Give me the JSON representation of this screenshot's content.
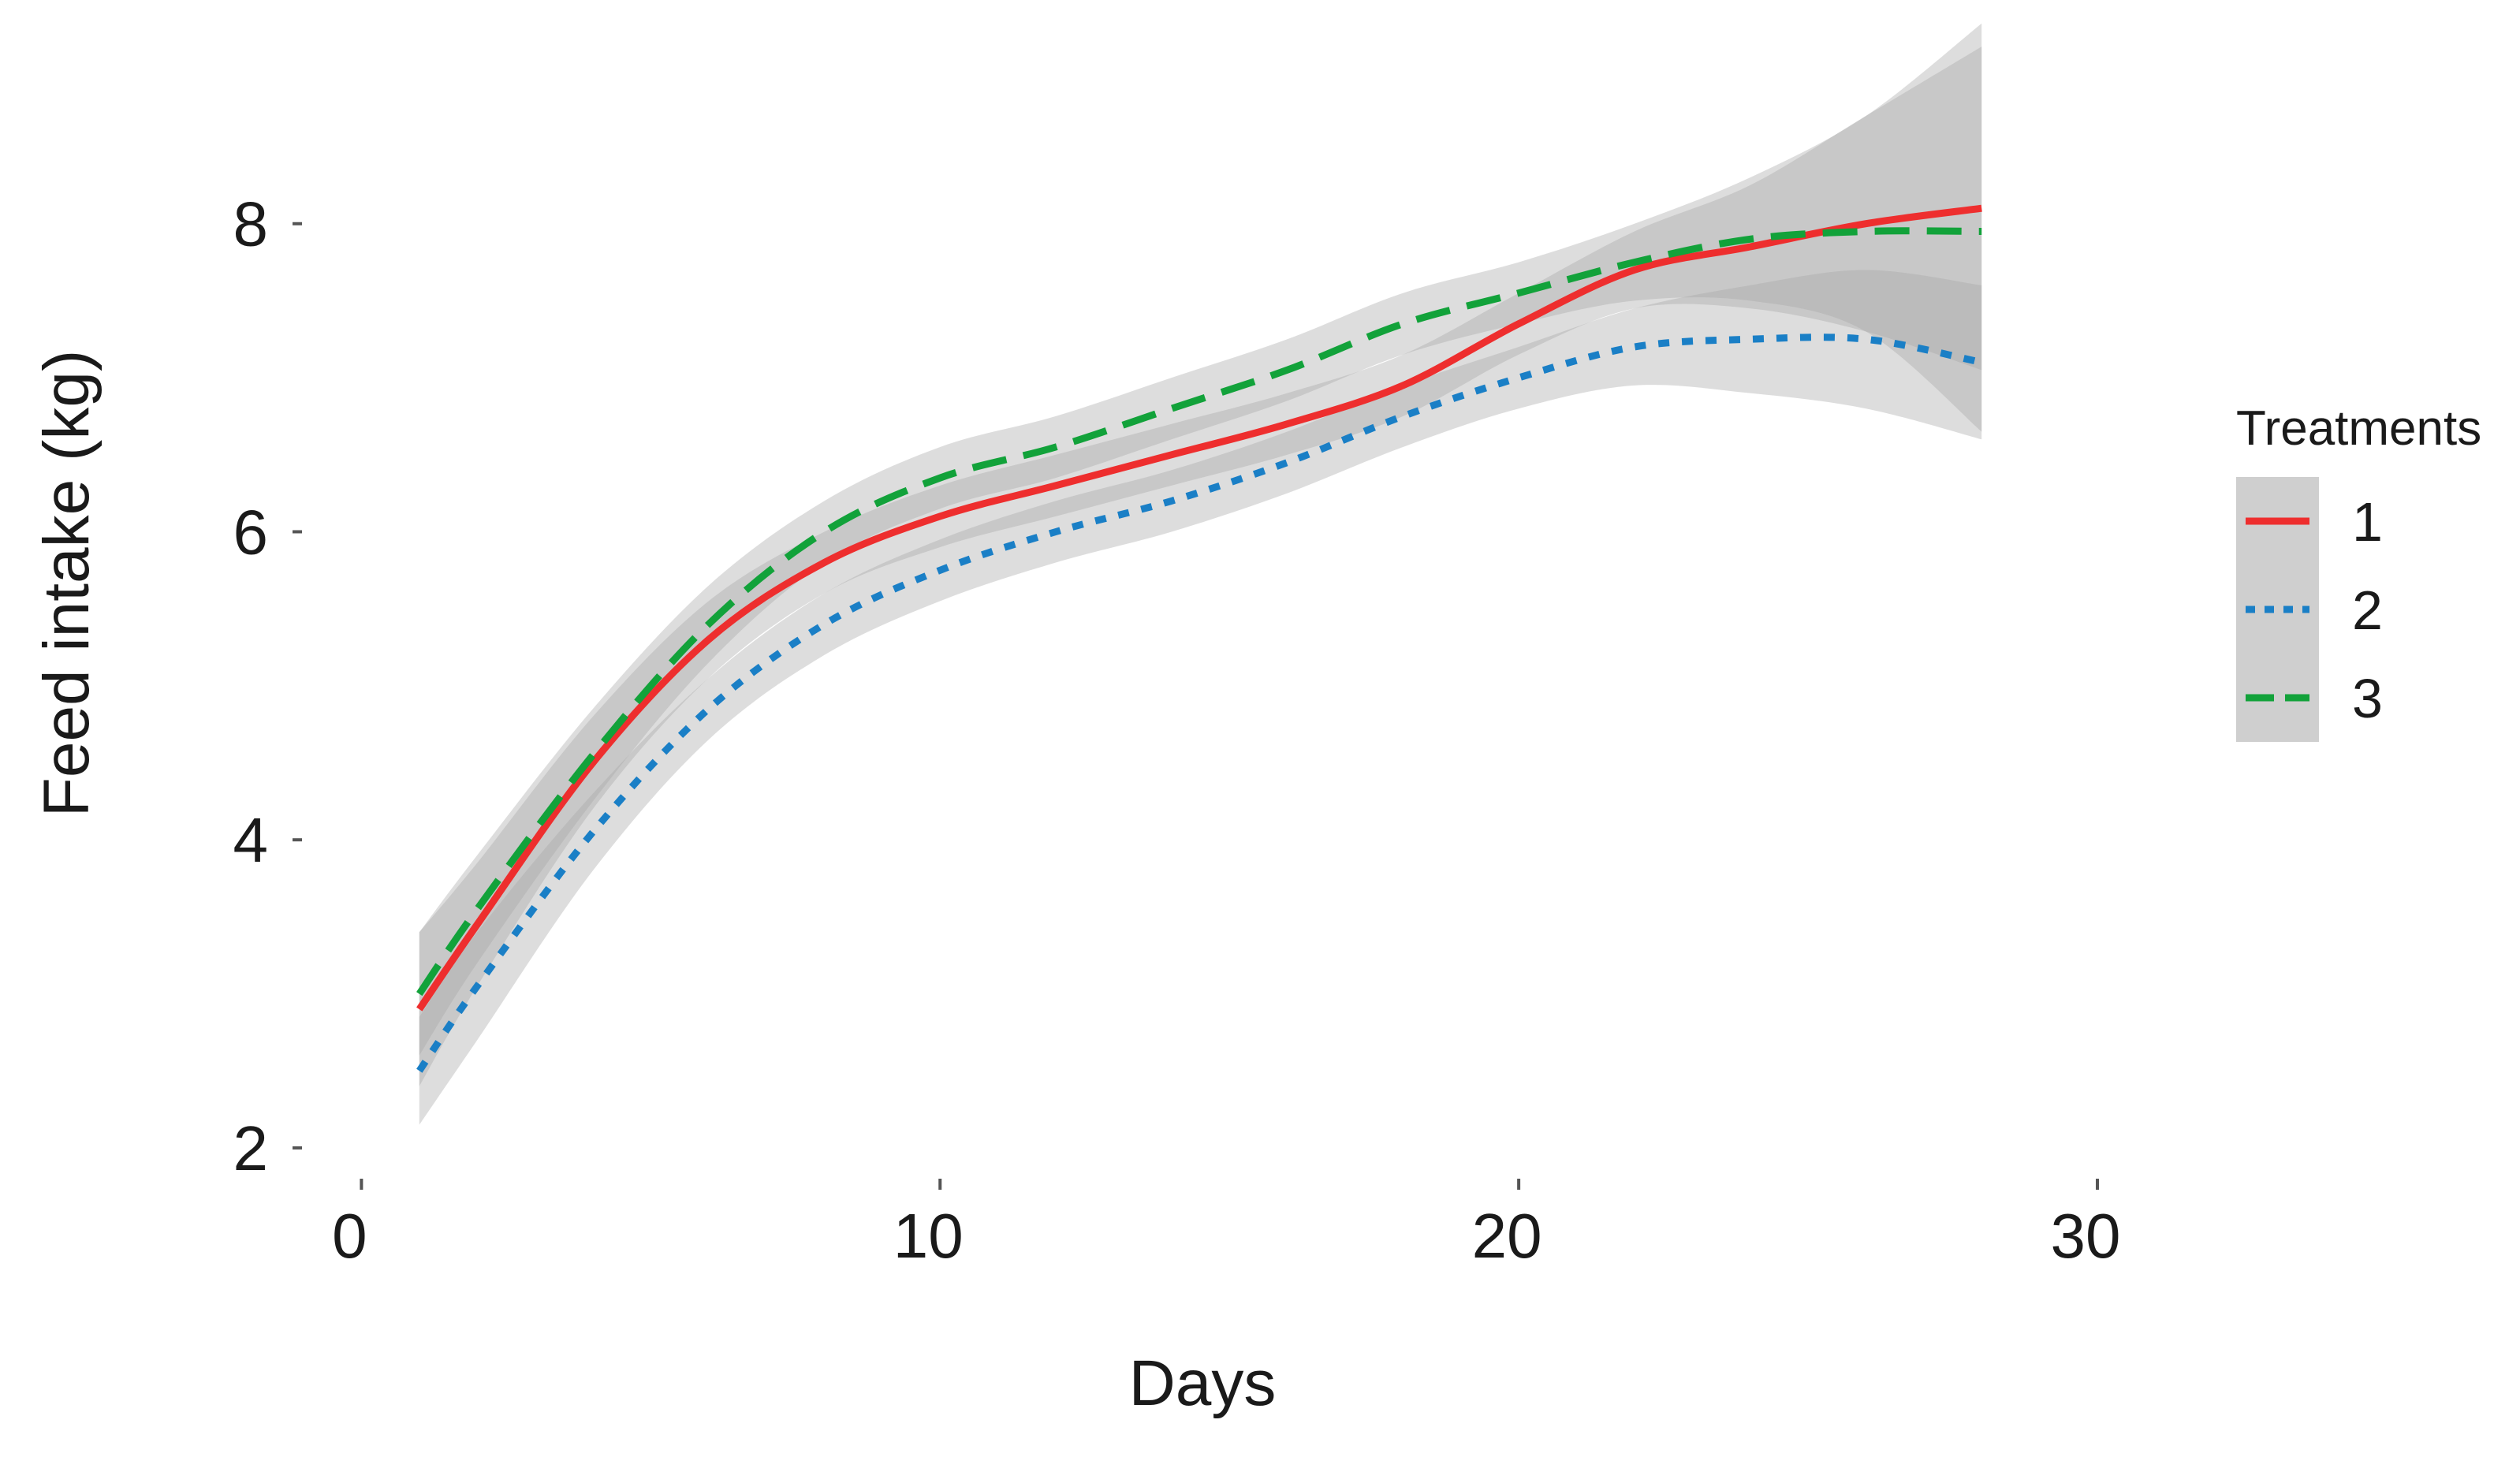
{
  "chart_data": {
    "type": "line",
    "title": "",
    "xlabel": "Days",
    "ylabel": "Feed intake (kg)",
    "xlim": [
      -1,
      30
    ],
    "ylim": [
      1.8,
      9.35
    ],
    "x_ticks": [
      0,
      10,
      20,
      30
    ],
    "y_ticks": [
      2,
      4,
      6,
      8
    ],
    "x_tick_labels": [
      "0",
      "10",
      "20",
      "30"
    ],
    "y_tick_labels": [
      "2",
      "4",
      "6",
      "8"
    ],
    "grid": false,
    "confidence_bands": true,
    "band_color": "#a6a6a6",
    "legend": {
      "title": "Treatments",
      "position": "right"
    },
    "x": [
      1,
      2,
      4,
      6,
      8,
      10,
      12,
      14,
      16,
      18,
      20,
      22,
      24,
      26,
      28
    ],
    "series": [
      {
        "name": "1",
        "color": "#ee2e2e",
        "dash": "solid",
        "values": [
          2.9,
          3.45,
          4.5,
          5.3,
          5.8,
          6.1,
          6.3,
          6.5,
          6.7,
          6.95,
          7.35,
          7.7,
          7.85,
          8.0,
          8.1
        ],
        "lower": [
          2.4,
          3.05,
          4.2,
          5.05,
          5.6,
          5.9,
          6.1,
          6.3,
          6.5,
          6.75,
          7.15,
          7.45,
          7.45,
          7.3,
          7.05
        ],
        "upper": [
          3.4,
          3.85,
          4.8,
          5.55,
          6.0,
          6.3,
          6.5,
          6.7,
          6.9,
          7.15,
          7.55,
          7.95,
          8.25,
          8.7,
          9.15
        ]
      },
      {
        "name": "2",
        "color": "#1a7fc6",
        "dash": "dotted",
        "values": [
          2.5,
          3.05,
          4.05,
          4.85,
          5.4,
          5.75,
          6.0,
          6.2,
          6.45,
          6.75,
          7.0,
          7.2,
          7.25,
          7.25,
          7.1
        ],
        "lower": [
          2.15,
          2.7,
          3.8,
          4.65,
          5.2,
          5.55,
          5.8,
          6.0,
          6.25,
          6.55,
          6.8,
          6.95,
          6.9,
          6.8,
          6.6
        ],
        "upper": [
          2.85,
          3.4,
          4.3,
          5.05,
          5.6,
          5.95,
          6.2,
          6.4,
          6.65,
          6.95,
          7.2,
          7.45,
          7.6,
          7.7,
          7.6
        ]
      },
      {
        "name": "3",
        "color": "#12a23a",
        "dash": "dashed",
        "values": [
          3.0,
          3.55,
          4.55,
          5.4,
          6.0,
          6.35,
          6.55,
          6.8,
          7.05,
          7.35,
          7.55,
          7.75,
          7.9,
          7.95,
          7.95
        ],
        "lower": [
          2.6,
          3.2,
          4.25,
          5.15,
          5.8,
          6.15,
          6.35,
          6.6,
          6.85,
          7.15,
          7.35,
          7.5,
          7.5,
          7.3,
          6.65
        ],
        "upper": [
          3.4,
          3.9,
          4.85,
          5.65,
          6.2,
          6.55,
          6.75,
          7.0,
          7.25,
          7.55,
          7.75,
          8.0,
          8.3,
          8.7,
          9.3
        ]
      }
    ]
  }
}
